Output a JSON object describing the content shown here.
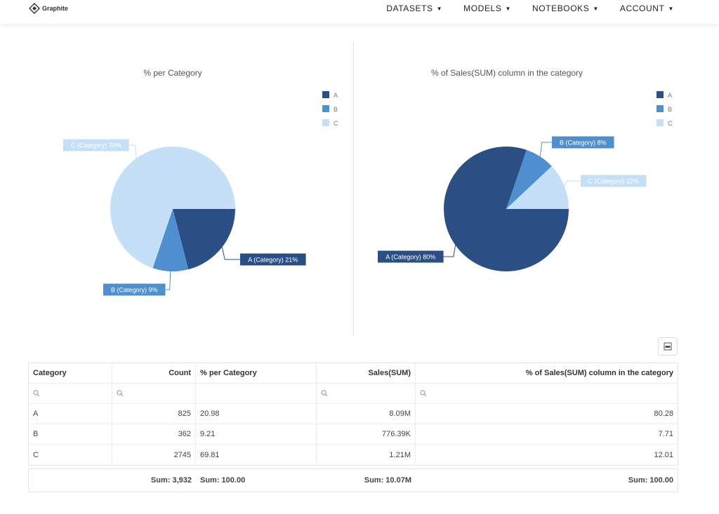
{
  "brand": {
    "name": "Graphite"
  },
  "nav": {
    "items": [
      {
        "label": "DATASETS"
      },
      {
        "label": "MODELS"
      },
      {
        "label": "NOTEBOOKS"
      },
      {
        "label": "ACCOUNT"
      }
    ],
    "caret": "▼"
  },
  "colors": {
    "A": "#2b4f85",
    "B": "#4f8fcf",
    "C": "#c5e0f6"
  },
  "chart_data": [
    {
      "type": "pie",
      "title": "% per Category",
      "legend": [
        "A",
        "B",
        "C"
      ],
      "legend_position": "top-right",
      "slices": [
        {
          "name": "A",
          "value": 20.98,
          "label": "A (Category) 21%"
        },
        {
          "name": "B",
          "value": 9.21,
          "label": "B (Category) 9%"
        },
        {
          "name": "C",
          "value": 69.81,
          "label": "C (Category) 70%"
        }
      ]
    },
    {
      "type": "pie",
      "title": "% of Sales(SUM) column in the category",
      "legend": [
        "A",
        "B",
        "C"
      ],
      "legend_position": "top-right",
      "slices": [
        {
          "name": "A",
          "value": 80.28,
          "label": "A (Category) 80%"
        },
        {
          "name": "B",
          "value": 7.71,
          "label": "B (Category) 8%"
        },
        {
          "name": "C",
          "value": 12.01,
          "label": "C (Category) 12%"
        }
      ]
    }
  ],
  "table": {
    "columns": [
      "Category",
      "Count",
      "% per Category",
      "Sales(SUM)",
      "% of Sales(SUM) column in the category"
    ],
    "rows": [
      [
        "A",
        "825",
        "20.98",
        "8.09M",
        "80.28"
      ],
      [
        "B",
        "362",
        "9.21",
        "776.39K",
        "7.71"
      ],
      [
        "C",
        "2745",
        "69.81",
        "1.21M",
        "12.01"
      ]
    ],
    "totals": [
      "",
      "Sum: 3,932",
      "Sum: 100.00",
      "Sum: 10.07M",
      "Sum: 100.00"
    ]
  }
}
